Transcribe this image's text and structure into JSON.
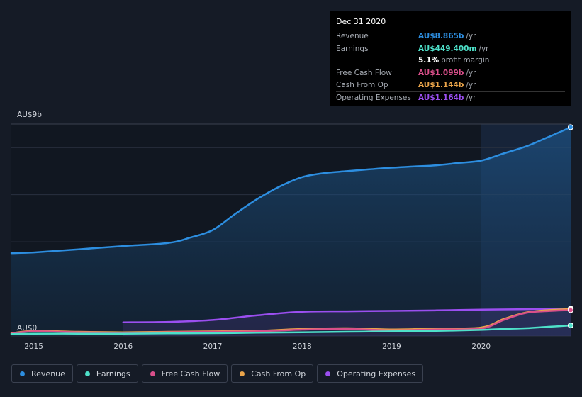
{
  "tooltip": {
    "date": "Dec 31 2020",
    "rows": [
      {
        "label": "Revenue",
        "value": "AU$8.865b",
        "unit": "/yr",
        "color": "#2d8ee0"
      },
      {
        "label": "Earnings",
        "value": "AU$449.400m",
        "unit": "/yr",
        "color": "#4ee0c9"
      },
      {
        "label": "",
        "value": "5.1%",
        "unit": "profit margin",
        "color": "#ffffff"
      },
      {
        "label": "Free Cash Flow",
        "value": "AU$1.099b",
        "unit": "/yr",
        "color": "#d94f8a"
      },
      {
        "label": "Cash From Op",
        "value": "AU$1.144b",
        "unit": "/yr",
        "color": "#e9a44a"
      },
      {
        "label": "Operating Expenses",
        "value": "AU$1.164b",
        "unit": "/yr",
        "color": "#9b4ff0"
      }
    ]
  },
  "legend": [
    {
      "label": "Revenue",
      "color": "#2d8ee0"
    },
    {
      "label": "Earnings",
      "color": "#4ee0c9"
    },
    {
      "label": "Free Cash Flow",
      "color": "#d94f8a"
    },
    {
      "label": "Cash From Op",
      "color": "#e9a44a"
    },
    {
      "label": "Operating Expenses",
      "color": "#9b4ff0"
    }
  ],
  "chart_data": {
    "type": "line",
    "ylabel_top": "AU$9b",
    "ylabel_bottom": "AU$0",
    "ylim": [
      0,
      9
    ],
    "xlim": [
      2014.75,
      2021.0
    ],
    "x_ticks": [
      "2015",
      "2016",
      "2017",
      "2018",
      "2019",
      "2020"
    ],
    "highlight_from": 2020.0,
    "series": [
      {
        "name": "Revenue",
        "color": "#2d8ee0",
        "fill": true,
        "x": [
          2014.75,
          2015.0,
          2015.5,
          2016.0,
          2016.5,
          2016.75,
          2017.0,
          2017.25,
          2017.5,
          2017.75,
          2018.0,
          2018.25,
          2018.5,
          2018.75,
          2019.0,
          2019.25,
          2019.5,
          2019.75,
          2020.0,
          2020.25,
          2020.5,
          2020.75,
          2021.0
        ],
        "y": [
          3.52,
          3.55,
          3.68,
          3.82,
          3.95,
          4.18,
          4.5,
          5.18,
          5.82,
          6.35,
          6.75,
          6.92,
          7.0,
          7.08,
          7.15,
          7.2,
          7.25,
          7.35,
          7.45,
          7.75,
          8.05,
          8.45,
          8.865
        ]
      },
      {
        "name": "Operating Expenses",
        "color": "#9b4ff0",
        "fill": true,
        "x": [
          2016.0,
          2016.5,
          2017.0,
          2017.5,
          2018.0,
          2018.5,
          2019.0,
          2019.5,
          2020.0,
          2020.5,
          2021.0
        ],
        "y": [
          0.58,
          0.6,
          0.68,
          0.88,
          1.03,
          1.05,
          1.07,
          1.09,
          1.12,
          1.14,
          1.164
        ]
      },
      {
        "name": "Cash From Op",
        "color": "#e9a44a",
        "fill": false,
        "x": [
          2014.75,
          2015.0,
          2015.5,
          2016.0,
          2016.5,
          2017.0,
          2017.5,
          2018.0,
          2018.5,
          2019.0,
          2019.5,
          2020.0,
          2020.25,
          2020.5,
          2020.75,
          2021.0
        ],
        "y": [
          0.12,
          0.22,
          0.18,
          0.16,
          0.18,
          0.2,
          0.22,
          0.3,
          0.33,
          0.28,
          0.32,
          0.36,
          0.72,
          1.0,
          1.1,
          1.144
        ]
      },
      {
        "name": "Free Cash Flow",
        "color": "#d94f8a",
        "fill": false,
        "x": [
          2014.75,
          2015.0,
          2015.5,
          2016.0,
          2016.5,
          2017.0,
          2017.5,
          2018.0,
          2018.5,
          2019.0,
          2019.5,
          2020.0,
          2020.25,
          2020.5,
          2020.75,
          2021.0
        ],
        "y": [
          0.1,
          0.2,
          0.16,
          0.14,
          0.16,
          0.18,
          0.2,
          0.27,
          0.3,
          0.24,
          0.28,
          0.32,
          0.68,
          0.98,
          1.06,
          1.099
        ]
      },
      {
        "name": "Earnings",
        "color": "#4ee0c9",
        "fill": false,
        "x": [
          2014.75,
          2015.0,
          2015.5,
          2016.0,
          2016.5,
          2017.0,
          2017.5,
          2018.0,
          2018.5,
          2019.0,
          2019.5,
          2020.0,
          2020.25,
          2020.5,
          2020.75,
          2021.0
        ],
        "y": [
          0.08,
          0.1,
          0.1,
          0.1,
          0.11,
          0.12,
          0.14,
          0.16,
          0.18,
          0.2,
          0.22,
          0.26,
          0.3,
          0.33,
          0.39,
          0.4494
        ]
      }
    ]
  }
}
